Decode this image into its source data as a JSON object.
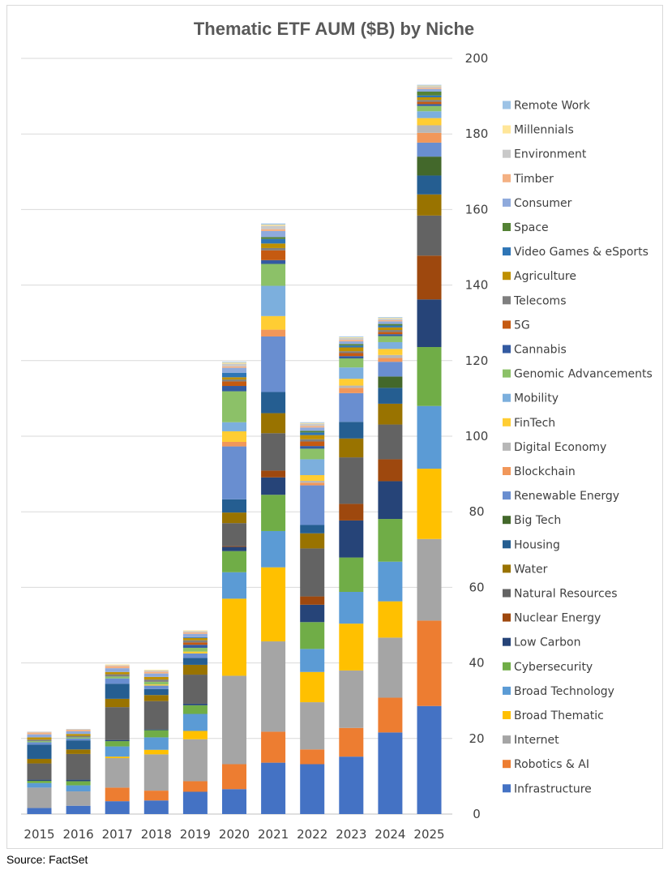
{
  "chart_data": {
    "type": "bar",
    "stacked": true,
    "title": "Thematic ETF AUM ($B) by Niche",
    "xlabel": "",
    "ylabel": "",
    "ylim": [
      0,
      200
    ],
    "yticks": [
      0,
      20,
      40,
      60,
      80,
      100,
      120,
      140,
      160,
      180,
      200
    ],
    "yaxis_side": "right",
    "grid": true,
    "legend_position": "right",
    "categories": [
      "2015",
      "2016",
      "2017",
      "2018",
      "2019",
      "2020",
      "2021",
      "2022",
      "2023",
      "2024",
      "2025"
    ],
    "series": [
      {
        "name": "Infrastructure",
        "color": "#4472C4",
        "values": [
          1.6,
          2.2,
          3.4,
          3.6,
          5.9,
          6.6,
          13.6,
          13.2,
          15.2,
          21.6,
          28.6
        ]
      },
      {
        "name": "Robotics & AI",
        "color": "#ED7D31",
        "values": [
          0,
          0,
          3.6,
          2.6,
          2.8,
          6.6,
          8.2,
          3.9,
          7.6,
          9.2,
          22.6
        ]
      },
      {
        "name": "Internet",
        "color": "#A5A5A5",
        "values": [
          5.4,
          3.8,
          7.8,
          9.6,
          11.1,
          23.4,
          23.9,
          12.5,
          15.2,
          15.9,
          21.6
        ]
      },
      {
        "name": "Broad Thematic",
        "color": "#FFC000",
        "values": [
          0,
          0,
          0.4,
          1.2,
          2.2,
          20.4,
          19.6,
          8.0,
          12.4,
          9.6,
          18.6
        ]
      },
      {
        "name": "Broad Technology",
        "color": "#5B9BD5",
        "values": [
          1.2,
          1.6,
          2.7,
          3.3,
          4.5,
          7.0,
          9.6,
          6.1,
          8.4,
          10.5,
          16.6
        ]
      },
      {
        "name": "Cybersecurity",
        "color": "#70AD47",
        "values": [
          0.6,
          1.1,
          1.4,
          1.9,
          2.3,
          5.6,
          9.6,
          7.1,
          9.1,
          11.3,
          15.6
        ]
      },
      {
        "name": "Low Carbon",
        "color": "#264478",
        "values": [
          0.3,
          0.4,
          0.3,
          0.2,
          0.4,
          1.1,
          4.6,
          4.6,
          9.8,
          10.0,
          12.6
        ]
      },
      {
        "name": "Nuclear Energy",
        "color": "#9E480E",
        "values": [
          0,
          0,
          0,
          0,
          0,
          0.2,
          1.8,
          2.2,
          4.4,
          5.8,
          11.6
        ]
      },
      {
        "name": "Natural Resources",
        "color": "#636363",
        "values": [
          4.3,
          6.8,
          8.7,
          7.5,
          7.7,
          6.1,
          9.9,
          12.7,
          12.3,
          9.2,
          10.6
        ]
      },
      {
        "name": "Water",
        "color": "#997300",
        "values": [
          1.2,
          1.2,
          2.2,
          1.6,
          2.6,
          2.8,
          5.3,
          4.0,
          5.0,
          5.5,
          5.6
        ]
      },
      {
        "name": "Housing",
        "color": "#255E91",
        "values": [
          3.8,
          2.4,
          4.0,
          1.6,
          1.8,
          3.5,
          5.6,
          2.2,
          4.4,
          4.2,
          5.0
        ]
      },
      {
        "name": "Big Tech",
        "color": "#43682B",
        "values": [
          0,
          0,
          0,
          0,
          0,
          0,
          0,
          0,
          0,
          3.0,
          5.0
        ]
      },
      {
        "name": "Renewable Energy",
        "color": "#698ED0",
        "values": [
          0.6,
          0.5,
          1.4,
          0.9,
          1.2,
          14.0,
          14.7,
          10.5,
          7.6,
          3.9,
          3.7
        ]
      },
      {
        "name": "Blockchain",
        "color": "#F1975A",
        "values": [
          0,
          0,
          0,
          0,
          0,
          1.2,
          1.8,
          0.7,
          1.4,
          1.0,
          2.6
        ]
      },
      {
        "name": "Digital Economy",
        "color": "#B7B7B7",
        "values": [
          0,
          0,
          0,
          0,
          0,
          0,
          0,
          0.5,
          0.6,
          0.8,
          2.0
        ]
      },
      {
        "name": "FinTech",
        "color": "#FFCD33",
        "values": [
          0,
          0,
          0,
          0.3,
          0.5,
          2.8,
          3.6,
          1.5,
          1.8,
          1.6,
          1.9
        ]
      },
      {
        "name": "Mobility",
        "color": "#7CAFDD",
        "values": [
          0,
          0,
          0,
          0,
          0,
          2.4,
          8.0,
          4.2,
          3.0,
          1.8,
          1.8
        ]
      },
      {
        "name": "Genomic Advancements",
        "color": "#8CC168",
        "values": [
          0.3,
          0.3,
          0.5,
          0.7,
          1.0,
          8.2,
          5.8,
          2.8,
          2.4,
          1.6,
          1.4
        ]
      },
      {
        "name": "Cannabis",
        "color": "#335AA1",
        "values": [
          0,
          0,
          0,
          0,
          0.8,
          1.4,
          1.0,
          0.7,
          0.6,
          0.5,
          0.5
        ]
      },
      {
        "name": "5G",
        "color": "#C55A11",
        "values": [
          0,
          0,
          0,
          0,
          0.6,
          1.2,
          2.6,
          1.2,
          0.8,
          0.6,
          0.6
        ]
      },
      {
        "name": "Telecoms",
        "color": "#7F7F7F",
        "values": [
          0.4,
          0.4,
          0.6,
          0.6,
          0.6,
          0.5,
          0.6,
          0.6,
          0.5,
          0.5,
          0.5
        ]
      },
      {
        "name": "Agriculture",
        "color": "#BF9000",
        "values": [
          0.6,
          0.5,
          0.6,
          0.7,
          0.6,
          0.6,
          1.2,
          1.1,
          1.0,
          0.7,
          0.7
        ]
      },
      {
        "name": "Video Games & eSports",
        "color": "#2E75B6",
        "values": [
          0,
          0,
          0,
          0,
          0.2,
          1.2,
          1.2,
          0.7,
          0.5,
          0.5,
          0.5
        ]
      },
      {
        "name": "Space",
        "color": "#548235",
        "values": [
          0,
          0,
          0,
          0,
          0,
          0,
          0.5,
          0.4,
          0.4,
          0.4,
          1.0
        ]
      },
      {
        "name": "Consumer",
        "color": "#8FAADC",
        "values": [
          0.8,
          0.7,
          1.0,
          0.9,
          0.9,
          1.3,
          1.6,
          0.9,
          0.7,
          0.7,
          0.7
        ]
      },
      {
        "name": "Timber",
        "color": "#F4B183",
        "values": [
          0.5,
          0.4,
          0.6,
          0.5,
          0.4,
          0.4,
          0.5,
          0.4,
          0.4,
          0.3,
          0.3
        ]
      },
      {
        "name": "Environment",
        "color": "#C9C9C9",
        "values": [
          0.2,
          0.2,
          0.2,
          0.3,
          0.3,
          0.7,
          0.9,
          0.6,
          0.5,
          0.4,
          0.4
        ]
      },
      {
        "name": "Millennials",
        "color": "#FFE699",
        "values": [
          0,
          0,
          0.2,
          0.2,
          0.2,
          0.3,
          0.3,
          0.2,
          0.2,
          0.2,
          0.2
        ]
      },
      {
        "name": "Remote Work",
        "color": "#9DC3E6",
        "values": [
          0,
          0,
          0,
          0,
          0,
          0.2,
          0.3,
          0.2,
          0.2,
          0.2,
          0.2
        ]
      }
    ],
    "source": "Source: FactSet"
  }
}
